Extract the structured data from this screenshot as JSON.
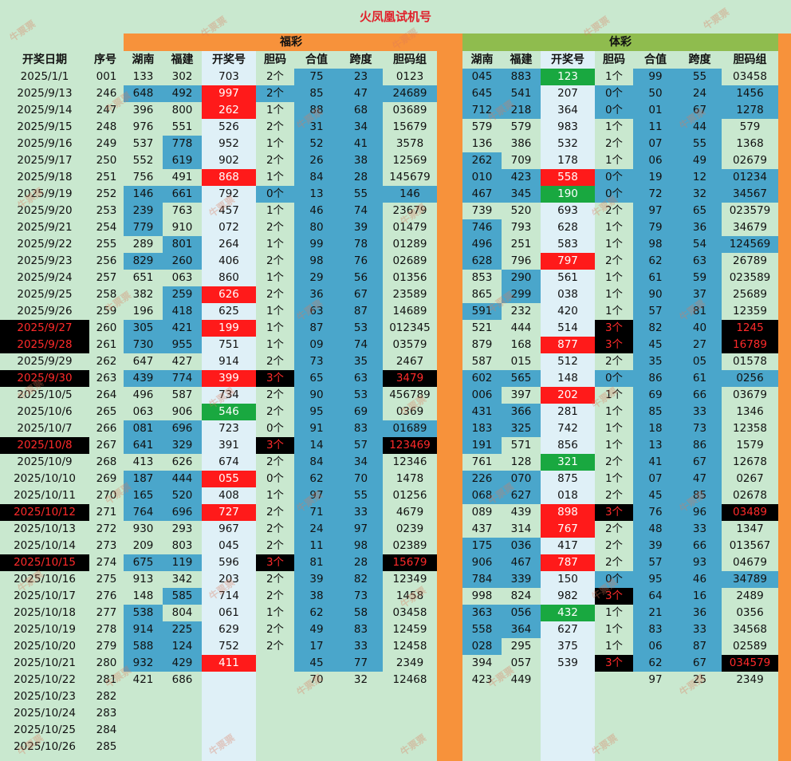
{
  "title": "火凤凰试机号",
  "sections": {
    "fucai": "福彩",
    "ticai": "体彩"
  },
  "left_headers": [
    "开奖日期",
    "序号"
  ],
  "sub_headers": [
    "湖南",
    "福建",
    "开奖号",
    "胆码",
    "合值",
    "跨度",
    "胆码组"
  ],
  "watermark": "牛票票",
  "rows": [
    {
      "date": "2025/1/1",
      "seq": "001",
      "f": [
        "133",
        "302",
        "703",
        "2个",
        "75",
        "23",
        "0123"
      ],
      "t": [
        "045",
        "883",
        "123",
        "1个",
        "99",
        "55",
        "03458"
      ]
    },
    {
      "date": "2025/9/13",
      "seq": "246",
      "f": [
        "648",
        "492",
        "997",
        "2个",
        "85",
        "47",
        "24689"
      ],
      "t": [
        "645",
        "541",
        "207",
        "0个",
        "50",
        "24",
        "1456"
      ]
    },
    {
      "date": "2025/9/14",
      "seq": "247",
      "f": [
        "396",
        "800",
        "262",
        "1个",
        "88",
        "68",
        "03689"
      ],
      "t": [
        "712",
        "218",
        "364",
        "0个",
        "01",
        "67",
        "1278"
      ]
    },
    {
      "date": "2025/9/15",
      "seq": "248",
      "f": [
        "976",
        "551",
        "526",
        "2个",
        "31",
        "34",
        "15679"
      ],
      "t": [
        "579",
        "579",
        "983",
        "1个",
        "11",
        "44",
        "579"
      ]
    },
    {
      "date": "2025/9/16",
      "seq": "249",
      "f": [
        "537",
        "778",
        "952",
        "1个",
        "52",
        "41",
        "3578"
      ],
      "t": [
        "136",
        "386",
        "532",
        "2个",
        "07",
        "55",
        "1368"
      ]
    },
    {
      "date": "2025/9/17",
      "seq": "250",
      "f": [
        "552",
        "619",
        "902",
        "2个",
        "26",
        "38",
        "12569"
      ],
      "t": [
        "262",
        "709",
        "178",
        "1个",
        "06",
        "49",
        "02679"
      ]
    },
    {
      "date": "2025/9/18",
      "seq": "251",
      "f": [
        "756",
        "491",
        "868",
        "1个",
        "84",
        "28",
        "145679"
      ],
      "t": [
        "010",
        "423",
        "558",
        "0个",
        "19",
        "12",
        "01234"
      ]
    },
    {
      "date": "2025/9/19",
      "seq": "252",
      "f": [
        "146",
        "661",
        "792",
        "0个",
        "13",
        "55",
        "146"
      ],
      "t": [
        "467",
        "345",
        "190",
        "0个",
        "72",
        "32",
        "34567"
      ]
    },
    {
      "date": "2025/9/20",
      "seq": "253",
      "f": [
        "239",
        "763",
        "457",
        "1个",
        "46",
        "74",
        "23679"
      ],
      "t": [
        "739",
        "520",
        "693",
        "2个",
        "97",
        "65",
        "023579"
      ]
    },
    {
      "date": "2025/9/21",
      "seq": "254",
      "f": [
        "779",
        "910",
        "072",
        "2个",
        "80",
        "39",
        "01479"
      ],
      "t": [
        "746",
        "793",
        "628",
        "1个",
        "79",
        "36",
        "34679"
      ]
    },
    {
      "date": "2025/9/22",
      "seq": "255",
      "f": [
        "289",
        "801",
        "264",
        "1个",
        "99",
        "78",
        "01289"
      ],
      "t": [
        "496",
        "251",
        "583",
        "1个",
        "98",
        "54",
        "124569"
      ]
    },
    {
      "date": "2025/9/23",
      "seq": "256",
      "f": [
        "829",
        "260",
        "406",
        "2个",
        "98",
        "76",
        "02689"
      ],
      "t": [
        "628",
        "796",
        "797",
        "2个",
        "62",
        "63",
        "26789"
      ]
    },
    {
      "date": "2025/9/24",
      "seq": "257",
      "f": [
        "651",
        "063",
        "860",
        "1个",
        "29",
        "56",
        "01356"
      ],
      "t": [
        "853",
        "290",
        "561",
        "1个",
        "61",
        "59",
        "023589"
      ]
    },
    {
      "date": "2025/9/25",
      "seq": "258",
      "f": [
        "382",
        "259",
        "626",
        "2个",
        "36",
        "67",
        "23589"
      ],
      "t": [
        "865",
        "299",
        "038",
        "1个",
        "90",
        "37",
        "25689"
      ]
    },
    {
      "date": "2025/9/26",
      "seq": "259",
      "f": [
        "196",
        "418",
        "625",
        "1个",
        "63",
        "87",
        "14689"
      ],
      "t": [
        "591",
        "232",
        "420",
        "1个",
        "57",
        "81",
        "12359"
      ]
    },
    {
      "date": "2025/9/27",
      "seq": "260",
      "f": [
        "305",
        "421",
        "199",
        "1个",
        "87",
        "53",
        "012345"
      ],
      "t": [
        "521",
        "444",
        "514",
        "3个",
        "82",
        "40",
        "1245"
      ]
    },
    {
      "date": "2025/9/28",
      "seq": "261",
      "f": [
        "730",
        "955",
        "751",
        "1个",
        "09",
        "74",
        "03579"
      ],
      "t": [
        "879",
        "168",
        "877",
        "3个",
        "45",
        "27",
        "16789"
      ]
    },
    {
      "date": "2025/9/29",
      "seq": "262",
      "f": [
        "647",
        "427",
        "914",
        "2个",
        "73",
        "35",
        "2467"
      ],
      "t": [
        "587",
        "015",
        "512",
        "2个",
        "35",
        "05",
        "01578"
      ]
    },
    {
      "date": "2025/9/30",
      "seq": "263",
      "f": [
        "439",
        "774",
        "399",
        "3个",
        "65",
        "63",
        "3479"
      ],
      "t": [
        "602",
        "565",
        "148",
        "0个",
        "86",
        "61",
        "0256"
      ]
    },
    {
      "date": "2025/10/5",
      "seq": "264",
      "f": [
        "496",
        "587",
        "734",
        "2个",
        "90",
        "53",
        "456789"
      ],
      "t": [
        "006",
        "397",
        "202",
        "1个",
        "69",
        "66",
        "03679"
      ]
    },
    {
      "date": "2025/10/6",
      "seq": "265",
      "f": [
        "063",
        "906",
        "546",
        "2个",
        "95",
        "69",
        "0369"
      ],
      "t": [
        "431",
        "366",
        "281",
        "1个",
        "85",
        "33",
        "1346"
      ]
    },
    {
      "date": "2025/10/7",
      "seq": "266",
      "f": [
        "081",
        "696",
        "723",
        "0个",
        "91",
        "83",
        "01689"
      ],
      "t": [
        "183",
        "325",
        "742",
        "1个",
        "18",
        "73",
        "12358"
      ]
    },
    {
      "date": "2025/10/8",
      "seq": "267",
      "f": [
        "641",
        "329",
        "391",
        "3个",
        "14",
        "57",
        "123469"
      ],
      "t": [
        "191",
        "571",
        "856",
        "1个",
        "13",
        "86",
        "1579"
      ]
    },
    {
      "date": "2025/10/9",
      "seq": "268",
      "f": [
        "413",
        "626",
        "674",
        "2个",
        "84",
        "34",
        "12346"
      ],
      "t": [
        "761",
        "128",
        "321",
        "2个",
        "41",
        "67",
        "12678"
      ]
    },
    {
      "date": "2025/10/10",
      "seq": "269",
      "f": [
        "187",
        "444",
        "055",
        "0个",
        "62",
        "70",
        "1478"
      ],
      "t": [
        "226",
        "070",
        "875",
        "1个",
        "07",
        "47",
        "0267"
      ]
    },
    {
      "date": "2025/10/11",
      "seq": "270",
      "f": [
        "165",
        "520",
        "408",
        "1个",
        "97",
        "55",
        "01256"
      ],
      "t": [
        "068",
        "627",
        "018",
        "2个",
        "45",
        "85",
        "02678"
      ]
    },
    {
      "date": "2025/10/12",
      "seq": "271",
      "f": [
        "764",
        "696",
        "727",
        "2个",
        "71",
        "33",
        "4679"
      ],
      "t": [
        "089",
        "439",
        "898",
        "3个",
        "76",
        "96",
        "03489"
      ]
    },
    {
      "date": "2025/10/13",
      "seq": "272",
      "f": [
        "930",
        "293",
        "967",
        "2个",
        "24",
        "97",
        "0239"
      ],
      "t": [
        "437",
        "314",
        "767",
        "2个",
        "48",
        "33",
        "1347"
      ]
    },
    {
      "date": "2025/10/14",
      "seq": "273",
      "f": [
        "209",
        "803",
        "045",
        "2个",
        "11",
        "98",
        "02389"
      ],
      "t": [
        "175",
        "036",
        "417",
        "2个",
        "39",
        "66",
        "013567"
      ]
    },
    {
      "date": "2025/10/15",
      "seq": "274",
      "f": [
        "675",
        "119",
        "596",
        "3个",
        "81",
        "28",
        "15679"
      ],
      "t": [
        "906",
        "467",
        "787",
        "2个",
        "57",
        "93",
        "04679"
      ]
    },
    {
      "date": "2025/10/16",
      "seq": "275",
      "f": [
        "913",
        "342",
        "203",
        "2个",
        "39",
        "82",
        "12349"
      ],
      "t": [
        "784",
        "339",
        "150",
        "0个",
        "95",
        "46",
        "34789"
      ]
    },
    {
      "date": "2025/10/17",
      "seq": "276",
      "f": [
        "148",
        "585",
        "714",
        "2个",
        "38",
        "73",
        "1458"
      ],
      "t": [
        "998",
        "824",
        "982",
        "3个",
        "64",
        "16",
        "2489"
      ]
    },
    {
      "date": "2025/10/18",
      "seq": "277",
      "f": [
        "538",
        "804",
        "061",
        "1个",
        "62",
        "58",
        "03458"
      ],
      "t": [
        "363",
        "056",
        "432",
        "1个",
        "21",
        "36",
        "0356"
      ]
    },
    {
      "date": "2025/10/19",
      "seq": "278",
      "f": [
        "914",
        "225",
        "629",
        "2个",
        "49",
        "83",
        "12459"
      ],
      "t": [
        "558",
        "364",
        "627",
        "1个",
        "83",
        "33",
        "34568"
      ]
    },
    {
      "date": "2025/10/20",
      "seq": "279",
      "f": [
        "588",
        "124",
        "752",
        "2个",
        "17",
        "33",
        "12458"
      ],
      "t": [
        "028",
        "295",
        "375",
        "1个",
        "06",
        "87",
        "02589"
      ]
    },
    {
      "date": "2025/10/21",
      "seq": "280",
      "f": [
        "932",
        "429",
        "411",
        "",
        "45",
        "77",
        "2349"
      ],
      "t": [
        "394",
        "057",
        "539",
        "3个",
        "62",
        "67",
        "034579"
      ]
    },
    {
      "date": "2025/10/22",
      "seq": "281",
      "f": [
        "421",
        "686",
        "",
        "",
        "70",
        "32",
        "12468"
      ],
      "t": [
        "423",
        "449",
        "",
        "",
        "97",
        "25",
        "2349"
      ]
    },
    {
      "date": "2025/10/23",
      "seq": "282",
      "f": [
        "",
        "",
        "",
        "",
        "",
        "",
        ""
      ],
      "t": [
        "",
        "",
        "",
        "",
        "",
        "",
        ""
      ]
    },
    {
      "date": "2025/10/24",
      "seq": "283",
      "f": [
        "",
        "",
        "",
        "",
        "",
        "",
        ""
      ],
      "t": [
        "",
        "",
        "",
        "",
        "",
        "",
        ""
      ]
    },
    {
      "date": "2025/10/25",
      "seq": "284",
      "f": [
        "",
        "",
        "",
        "",
        "",
        "",
        ""
      ],
      "t": [
        "",
        "",
        "",
        "",
        "",
        "",
        ""
      ]
    },
    {
      "date": "2025/10/26",
      "seq": "285",
      "f": [
        "",
        "",
        "",
        "",
        "",
        "",
        ""
      ],
      "t": [
        "",
        "",
        "",
        "",
        "",
        "",
        ""
      ]
    }
  ],
  "styles": {
    "date_black_rows": [
      15,
      16,
      18,
      22,
      26,
      29
    ],
    "f_blue": {
      "0": [
        4,
        5
      ],
      "1": [
        0,
        1,
        2,
        3,
        4,
        5,
        6
      ],
      "2": [
        4,
        5
      ],
      "3": [
        4,
        5
      ],
      "4": [
        1,
        4,
        5
      ],
      "5": [
        1,
        4,
        5
      ],
      "6": [
        4,
        5
      ],
      "7": [
        0,
        1,
        3,
        4,
        5,
        6
      ],
      "8": [
        0,
        4,
        5
      ],
      "9": [
        0,
        4,
        5
      ],
      "10": [
        1,
        4,
        5
      ],
      "11": [
        0,
        1,
        4,
        5
      ],
      "12": [
        4,
        5
      ],
      "13": [
        1,
        4,
        5
      ],
      "14": [
        1,
        4,
        5
      ],
      "15": [
        0,
        1,
        4,
        5
      ],
      "16": [
        0,
        1,
        4,
        5
      ],
      "17": [
        4,
        5
      ],
      "18": [
        0,
        1,
        4,
        5
      ],
      "19": [
        4,
        5
      ],
      "20": [
        4,
        5
      ],
      "21": [
        0,
        1,
        4,
        5,
        6
      ],
      "22": [
        0,
        1,
        4,
        5
      ],
      "23": [
        4,
        5
      ],
      "24": [
        0,
        1,
        4,
        5
      ],
      "25": [
        0,
        1,
        4,
        5
      ],
      "26": [
        0,
        1,
        4,
        5
      ],
      "27": [
        4,
        5
      ],
      "28": [
        4,
        5
      ],
      "29": [
        0,
        1,
        4,
        5
      ],
      "30": [
        4,
        5
      ],
      "31": [
        1,
        4,
        5
      ],
      "32": [
        0,
        4,
        5
      ],
      "33": [
        0,
        1,
        4,
        5
      ],
      "34": [
        0,
        1,
        4,
        5
      ],
      "35": [
        0,
        1,
        4,
        5
      ]
    },
    "t_blue": {
      "0": [
        0,
        1,
        4,
        5
      ],
      "1": [
        0,
        1,
        3,
        4,
        5,
        6
      ],
      "2": [
        0,
        1,
        3,
        4,
        5,
        6
      ],
      "3": [
        4,
        5
      ],
      "4": [
        4,
        5
      ],
      "5": [
        0,
        4,
        5
      ],
      "6": [
        0,
        1,
        3,
        4,
        5,
        6
      ],
      "7": [
        0,
        1,
        3,
        4,
        5,
        6
      ],
      "8": [
        4,
        5
      ],
      "9": [
        0,
        4,
        5
      ],
      "10": [
        0,
        4,
        5,
        6
      ],
      "11": [
        0,
        4,
        5
      ],
      "12": [
        1,
        4,
        5
      ],
      "13": [
        1,
        4,
        5
      ],
      "14": [
        0,
        4,
        5
      ],
      "15": [
        4,
        5
      ],
      "16": [
        4,
        5
      ],
      "17": [
        4,
        5
      ],
      "18": [
        0,
        1,
        3,
        4,
        5,
        6
      ],
      "19": [
        0,
        4,
        5
      ],
      "20": [
        0,
        1,
        4,
        5
      ],
      "21": [
        0,
        1,
        4,
        5
      ],
      "22": [
        0,
        4,
        5
      ],
      "23": [
        4,
        5
      ],
      "24": [
        0,
        1,
        4,
        5
      ],
      "25": [
        0,
        1,
        4,
        5
      ],
      "26": [
        4,
        5
      ],
      "27": [
        4,
        5
      ],
      "28": [
        0,
        1,
        4,
        5
      ],
      "29": [
        0,
        1,
        4,
        5
      ],
      "30": [
        0,
        1,
        3,
        4,
        5,
        6
      ],
      "31": [
        4,
        5
      ],
      "32": [
        0,
        1,
        4,
        5
      ],
      "33": [
        0,
        1,
        4,
        5
      ],
      "34": [
        0,
        4,
        5
      ],
      "35": [
        4,
        5
      ]
    },
    "f_red": [
      1,
      2,
      6,
      13,
      15,
      18,
      24,
      26,
      35
    ],
    "f_green": [
      20
    ],
    "f_black_code": [
      18,
      22,
      29
    ],
    "f_black_group": [
      18,
      22,
      29
    ],
    "t_green": [
      0,
      7,
      23,
      32
    ],
    "t_red": [
      6,
      11,
      16,
      19,
      26,
      27,
      29
    ],
    "t_black_code": [
      15,
      16,
      26,
      31,
      35
    ],
    "t_black_group": [
      15,
      16,
      26,
      35
    ]
  },
  "colors": {
    "orange": "#f7923b",
    "green_band": "#8fbc4e",
    "blue": "#4aa6cb",
    "red": "#ff1a1a",
    "green": "#19a840"
  }
}
